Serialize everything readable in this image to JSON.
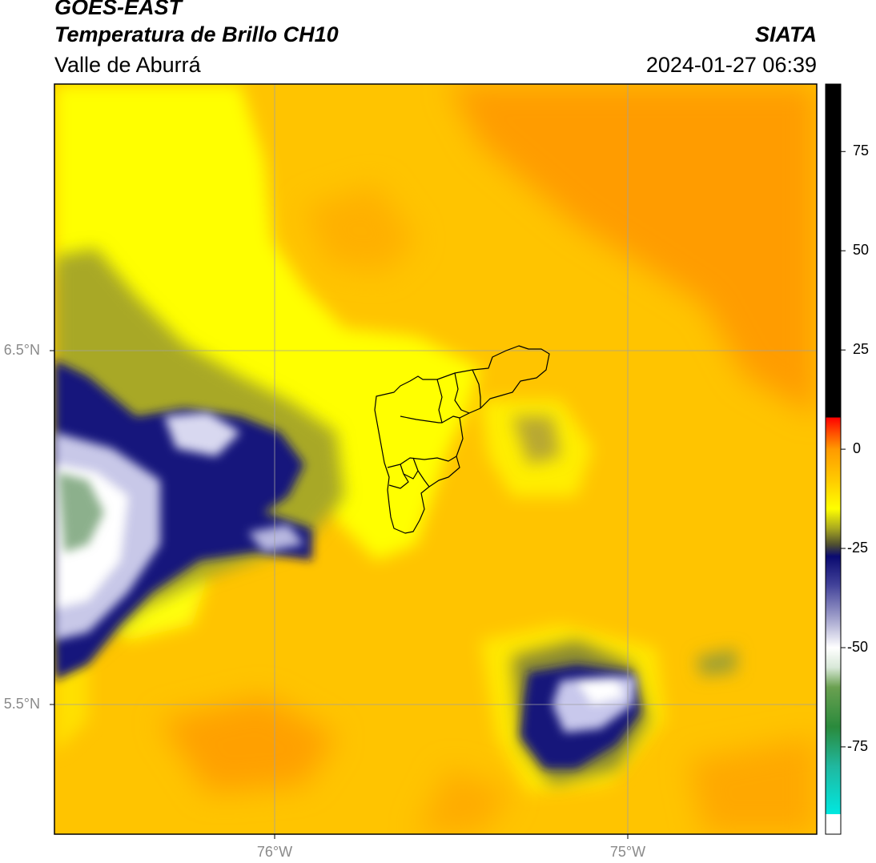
{
  "header": {
    "satellite": "GOES-EAST",
    "product": "Temperatura de Brillo CH10",
    "region": "Valle de Aburrá",
    "organization": "SIATA",
    "datetime": "2024-01-27 06:39"
  },
  "axes": {
    "lat_labels": [
      "6.5°N",
      "5.5°N"
    ],
    "lon_labels": [
      "76°W",
      "75°W"
    ],
    "extent": {
      "lon_min": -76.62,
      "lon_max": -74.46,
      "lat_min": 5.13,
      "lat_max": 7.25
    }
  },
  "colorbar": {
    "ticks": [
      "75",
      "50",
      "25",
      "0",
      "-25",
      "-50",
      "-75"
    ],
    "tick_values": [
      75,
      50,
      25,
      0,
      -25,
      -50,
      -75
    ],
    "range": [
      -97,
      92
    ],
    "stops": [
      {
        "v": -97,
        "c": "#ffffff"
      },
      {
        "v": -92,
        "c": "#ffffff"
      },
      {
        "v": -92,
        "c": "#00e8e0"
      },
      {
        "v": -80,
        "c": "#20b8a0"
      },
      {
        "v": -70,
        "c": "#2a8a3c"
      },
      {
        "v": -60,
        "c": "#6aa050"
      },
      {
        "v": -55,
        "c": "#d8e8d8"
      },
      {
        "v": -50,
        "c": "#ffffff"
      },
      {
        "v": -42,
        "c": "#9a9ac8"
      },
      {
        "v": -34,
        "c": "#404098"
      },
      {
        "v": -27,
        "c": "#0a0a70"
      },
      {
        "v": -24,
        "c": "#505030"
      },
      {
        "v": -20,
        "c": "#a8a820"
      },
      {
        "v": -15,
        "c": "#ffff00"
      },
      {
        "v": -8,
        "c": "#ffcc00"
      },
      {
        "v": 0,
        "c": "#ff9a00"
      },
      {
        "v": 4,
        "c": "#ff5000"
      },
      {
        "v": 8,
        "c": "#ff0000"
      },
      {
        "v": 8,
        "c": "#000000"
      },
      {
        "v": 92,
        "c": "#000000"
      }
    ]
  },
  "colors": {
    "warm": "#ffa000",
    "mid": "#ffcc00",
    "yellow": "#ffff00",
    "olive": "#9a9a30",
    "deep_cloud": "#0c0c78",
    "cold_cloud": "#f4f4ff",
    "very_cold": "#9cbc9c",
    "grid": "#a0a0a0",
    "boundary": "#000000"
  }
}
